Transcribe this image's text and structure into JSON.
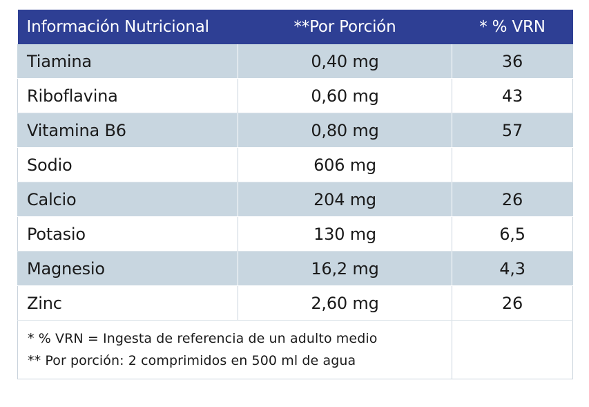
{
  "header": {
    "col1": "Información Nutricional",
    "col2": "**Por Porción",
    "col3": "* % VRN"
  },
  "rows": [
    {
      "name": "Tiamina",
      "amount": "0,40 mg",
      "vrn": "36"
    },
    {
      "name": "Riboflavina",
      "amount": "0,60 mg",
      "vrn": "43"
    },
    {
      "name": "Vitamina B6",
      "amount": "0,80 mg",
      "vrn": "57"
    },
    {
      "name": "Sodio",
      "amount": "606 mg",
      "vrn": ""
    },
    {
      "name": "Calcio",
      "amount": "204 mg",
      "vrn": "26"
    },
    {
      "name": "Potasio",
      "amount": "130 mg",
      "vrn": "6,5"
    },
    {
      "name": "Magnesio",
      "amount": "16,2 mg",
      "vrn": "4,3"
    },
    {
      "name": "Zinc",
      "amount": "2,60 mg",
      "vrn": "26"
    }
  ],
  "footnotes": {
    "line1": "* % VRN = Ingesta de referencia de un adulto medio",
    "line2": "** Por porción: 2 comprimidos en 500 ml de agua"
  },
  "colors": {
    "header_bg": "#2e3f94",
    "stripe_bg": "#c8d6e0"
  }
}
